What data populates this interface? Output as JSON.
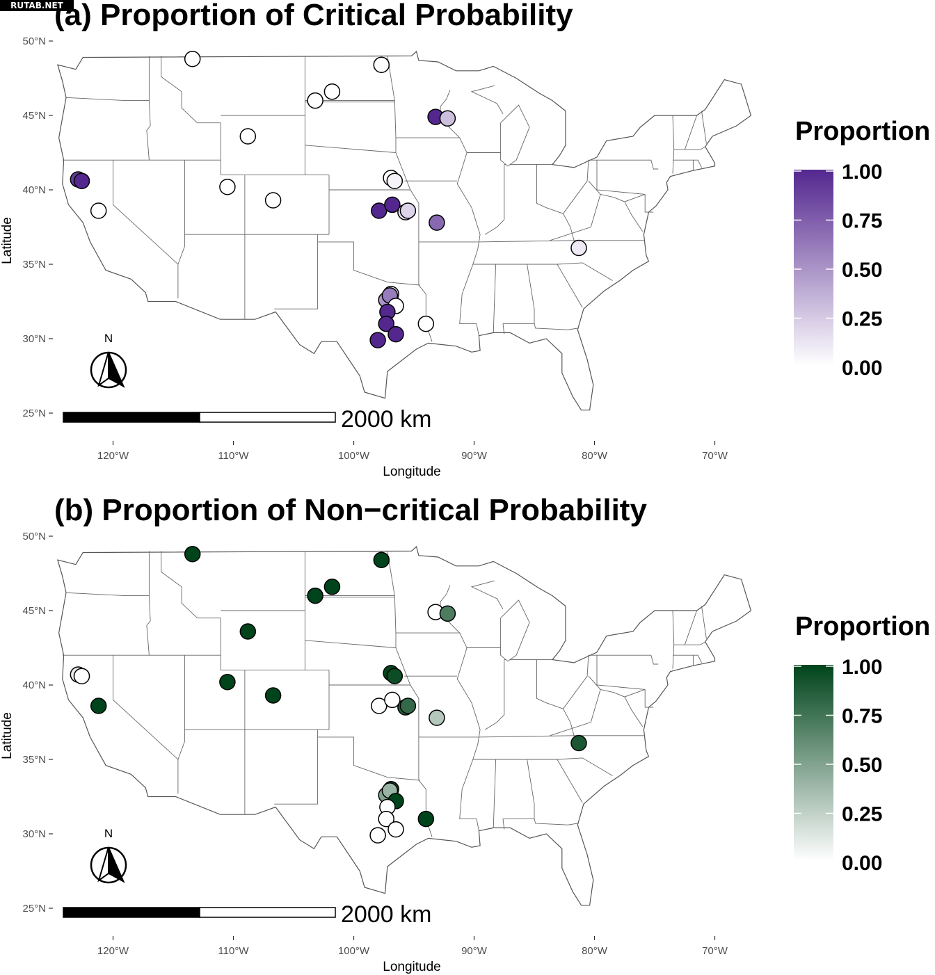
{
  "watermark": "RUTAB.NET",
  "panels": [
    {
      "id": "a",
      "title": "(a) Proportion of Critical Probability",
      "legend": {
        "title": "Proportion",
        "color_high": "#54278f",
        "color_low": "#ffffff",
        "labels": [
          "1.00",
          "0.75",
          "0.50",
          "0.25",
          "0.00"
        ]
      },
      "xlabel": "Longitude",
      "ylabel": "Latitude",
      "scale_bar_label": "2000 km",
      "north_label": "N"
    },
    {
      "id": "b",
      "title": "(b) Proportion of Non−critical Probability",
      "legend": {
        "title": "Proportion",
        "color_high": "#00441b",
        "color_low": "#ffffff",
        "labels": [
          "1.00",
          "0.75",
          "0.50",
          "0.25",
          "0.00"
        ]
      },
      "xlabel": "Longitude",
      "ylabel": "Latitude",
      "scale_bar_label": "2000 km",
      "north_label": "N"
    }
  ],
  "chart_data": {
    "type": "scatter",
    "x_ticks": [
      {
        "value": -120,
        "label": "120°W"
      },
      {
        "value": -110,
        "label": "110°W"
      },
      {
        "value": -100,
        "label": "100°W"
      },
      {
        "value": -90,
        "label": "90°W"
      },
      {
        "value": -80,
        "label": "80°W"
      },
      {
        "value": -70,
        "label": "70°W"
      }
    ],
    "y_ticks": [
      {
        "value": 25,
        "label": "25°N"
      },
      {
        "value": 30,
        "label": "30°N"
      },
      {
        "value": 35,
        "label": "35°N"
      },
      {
        "value": 40,
        "label": "40°N"
      },
      {
        "value": 45,
        "label": "45°N"
      },
      {
        "value": 50,
        "label": "50°N"
      }
    ],
    "xlim": [
      -125,
      -67
    ],
    "ylim": [
      24,
      50
    ],
    "sites": [
      {
        "lon": -113.4,
        "lat": 48.8,
        "critical": 0.0
      },
      {
        "lon": -97.7,
        "lat": 48.4,
        "critical": 0.0
      },
      {
        "lon": -101.8,
        "lat": 46.6,
        "critical": 0.0
      },
      {
        "lon": -103.2,
        "lat": 46.0,
        "critical": 0.0
      },
      {
        "lon": -93.2,
        "lat": 44.9,
        "critical": 1.0
      },
      {
        "lon": -92.2,
        "lat": 44.8,
        "critical": 0.3
      },
      {
        "lon": -108.8,
        "lat": 43.6,
        "critical": 0.0
      },
      {
        "lon": -122.9,
        "lat": 40.7,
        "critical": 0.9
      },
      {
        "lon": -122.6,
        "lat": 40.6,
        "critical": 1.0
      },
      {
        "lon": -121.2,
        "lat": 38.6,
        "critical": 0.0
      },
      {
        "lon": -110.5,
        "lat": 40.2,
        "critical": 0.0
      },
      {
        "lon": -106.7,
        "lat": 39.3,
        "critical": 0.0
      },
      {
        "lon": -96.9,
        "lat": 40.8,
        "critical": 0.0
      },
      {
        "lon": -96.6,
        "lat": 40.6,
        "critical": 0.05
      },
      {
        "lon": -97.9,
        "lat": 38.6,
        "critical": 1.0
      },
      {
        "lon": -96.8,
        "lat": 39.0,
        "critical": 1.0
      },
      {
        "lon": -95.7,
        "lat": 38.5,
        "critical": 0.15
      },
      {
        "lon": -95.5,
        "lat": 38.6,
        "critical": 0.2
      },
      {
        "lon": -93.1,
        "lat": 37.8,
        "critical": 0.7
      },
      {
        "lon": -81.3,
        "lat": 36.1,
        "critical": 0.1
      },
      {
        "lon": -96.9,
        "lat": 33.0,
        "critical": 0.05
      },
      {
        "lon": -97.3,
        "lat": 32.6,
        "critical": 0.5
      },
      {
        "lon": -97.0,
        "lat": 32.9,
        "critical": 0.6
      },
      {
        "lon": -96.5,
        "lat": 32.2,
        "critical": 0.0
      },
      {
        "lon": -97.2,
        "lat": 31.8,
        "critical": 1.0
      },
      {
        "lon": -97.3,
        "lat": 31.0,
        "critical": 1.0
      },
      {
        "lon": -96.5,
        "lat": 30.3,
        "critical": 1.0
      },
      {
        "lon": -98.0,
        "lat": 29.9,
        "critical": 1.0
      },
      {
        "lon": -94.0,
        "lat": 31.0,
        "critical": 0.0
      }
    ]
  }
}
